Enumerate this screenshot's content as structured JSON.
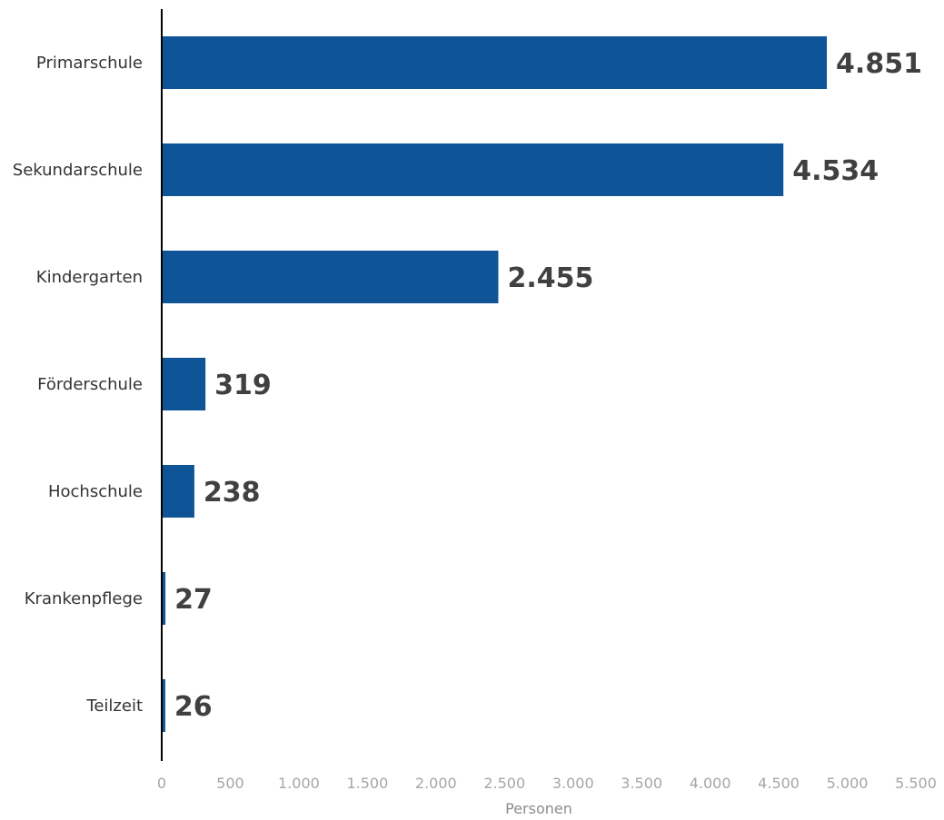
{
  "chart_data": {
    "type": "bar",
    "orientation": "horizontal",
    "categories": [
      "Primarschule",
      "Sekundarschule",
      "Kindergarten",
      "Förderschule",
      "Hochschule",
      "Krankenpflege",
      "Teilzeit"
    ],
    "values": [
      4851,
      4534,
      2455,
      319,
      238,
      27,
      26
    ],
    "value_labels": [
      "4.851",
      "4.534",
      "2.455",
      "319",
      "238",
      "27",
      "26"
    ],
    "xlabel": "Personen",
    "ylabel": "",
    "title": "",
    "xlim": [
      0,
      5500
    ],
    "x_ticks": [
      0,
      500,
      1000,
      1500,
      2000,
      2500,
      3000,
      3500,
      4000,
      4500,
      5000,
      5500
    ],
    "x_tick_labels": [
      "0",
      "500",
      "1.000",
      "1.500",
      "2.000",
      "2.500",
      "3.000",
      "3.500",
      "4.000",
      "4.500",
      "5.000",
      "5.500"
    ],
    "grid": false,
    "legend": "none",
    "colors": {
      "bar": "#0f5496",
      "inside_label_bg": "#7e9fc3",
      "value_label": "#404040",
      "axis_line": "#000000",
      "tick_label": "#a6a6a6"
    }
  }
}
